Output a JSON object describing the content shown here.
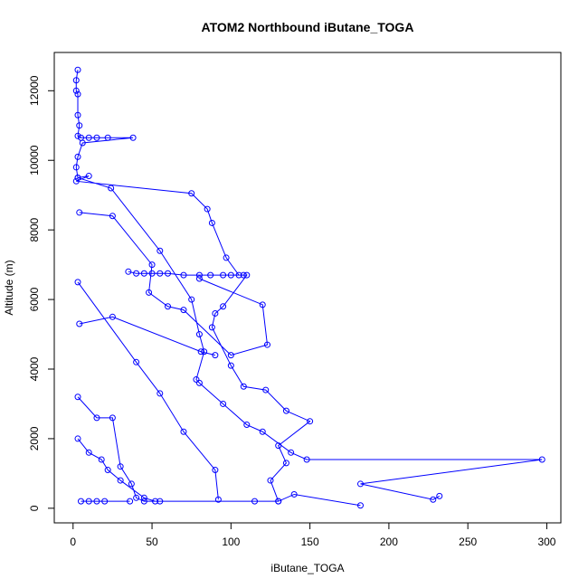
{
  "chart_data": {
    "type": "line",
    "title": "ATOM2 Northbound iButane_TOGA",
    "xlabel": "iButane_TOGA",
    "ylabel": "Altitude (m)",
    "color": "#0000ff",
    "x": [
      3,
      2,
      2,
      3,
      3,
      4,
      3,
      5,
      10,
      15,
      22,
      38,
      6,
      3,
      2,
      3,
      10,
      2,
      75,
      85,
      88,
      97,
      105,
      110,
      95,
      90,
      88,
      100,
      108,
      122,
      135,
      150,
      130,
      135,
      125,
      130,
      null,
      35,
      40,
      45,
      50,
      55,
      60,
      70,
      80,
      87,
      95,
      100,
      108,
      null,
      3,
      24,
      55,
      75,
      80,
      83,
      78,
      80,
      95,
      110,
      120,
      138,
      148,
      297,
      182,
      228,
      232,
      null,
      4,
      25,
      50,
      48,
      60,
      70,
      100,
      123,
      120,
      80,
      null,
      3,
      40,
      55,
      70,
      90,
      92,
      null,
      4,
      25,
      81,
      90,
      null,
      3,
      15,
      25,
      30,
      37,
      40,
      45,
      55,
      null,
      5,
      10,
      15,
      20,
      36,
      null,
      3,
      10,
      18,
      22,
      30,
      45,
      52,
      115,
      130,
      140,
      182
    ],
    "values": [
      12600,
      12300,
      12000,
      11900,
      11300,
      11000,
      10700,
      10650,
      10650,
      10650,
      10650,
      10650,
      10500,
      10100,
      9800,
      9500,
      9550,
      9400,
      9050,
      8600,
      8200,
      7200,
      6700,
      6700,
      5800,
      5600,
      5200,
      4100,
      3500,
      3400,
      2800,
      2500,
      1800,
      1300,
      800,
      200,
      null,
      6800,
      6750,
      6750,
      6750,
      6750,
      6750,
      6700,
      6700,
      6700,
      6700,
      6700,
      6700,
      null,
      9500,
      9200,
      7400,
      6000,
      5000,
      4500,
      3700,
      3600,
      3000,
      2400,
      2200,
      1600,
      1400,
      1400,
      700,
      250,
      350,
      null,
      8500,
      8400,
      7000,
      6200,
      5800,
      5700,
      4400,
      4700,
      5850,
      6600,
      null,
      6500,
      4200,
      3300,
      2200,
      1100,
      250,
      null,
      5300,
      5500,
      4500,
      4400,
      null,
      3200,
      2600,
      2600,
      1200,
      700,
      300,
      200,
      200,
      null,
      200,
      200,
      200,
      200,
      200,
      null,
      2000,
      1600,
      1400,
      1100,
      800,
      300,
      200,
      200,
      200,
      400,
      80
    ],
    "xlim": [
      -11.9,
      308.9
    ],
    "ylim": [
      -420,
      13100
    ],
    "xticks": [
      0,
      50,
      100,
      150,
      200,
      250,
      300
    ],
    "yticks": [
      0,
      2000,
      4000,
      6000,
      8000,
      10000,
      12000
    ]
  }
}
